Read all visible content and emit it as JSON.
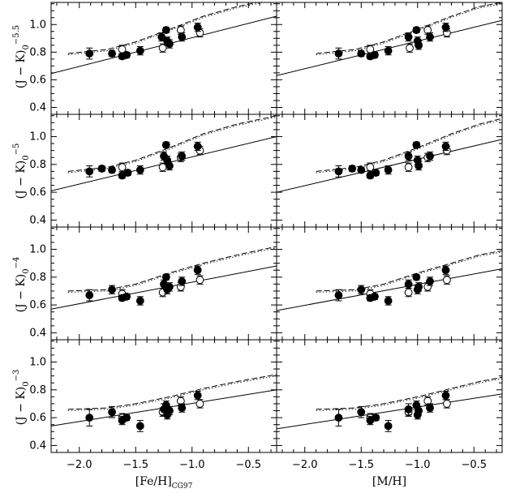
{
  "figure": {
    "xlabels": [
      "[Fe/H]",
      "[M/H]"
    ],
    "xlabel_subscripts": [
      "CG97",
      ""
    ],
    "ylabels": [
      {
        "main": "(J − K)",
        "sub": "0",
        "sup": "−5.5"
      },
      {
        "main": "(J − K)",
        "sub": "0",
        "sup": "−5"
      },
      {
        "main": "(J − K)",
        "sub": "0",
        "sup": "−4"
      },
      {
        "main": "(J − K)",
        "sub": "0",
        "sup": "−3"
      }
    ],
    "xticks": [
      "−2.0",
      "−1.5",
      "−1.0",
      "−0.5"
    ],
    "yticks": [
      "0.4",
      "0.6",
      "0.8",
      "1.0"
    ]
  },
  "chart_data": {
    "type": "scatter",
    "layout": "4 rows x 2 columns",
    "xlim": [
      -2.25,
      -0.25
    ],
    "ylim": [
      0.35,
      1.16
    ],
    "x_axes": [
      "[Fe/H]CG97",
      "[M/H]"
    ],
    "row_ylabels": [
      "(J-K)0 at -5.5",
      "(J-K)0 at -5",
      "(J-K)0 at -4",
      "(J-K)0 at -3"
    ],
    "panels": [
      {
        "row": 0,
        "col": 0,
        "filled": [
          [
            -1.91,
            0.79,
            0.04
          ],
          [
            -1.71,
            0.79,
            0.02
          ],
          [
            -1.62,
            0.77,
            0.02
          ],
          [
            -1.58,
            0.78,
            0.02
          ],
          [
            -1.46,
            0.81,
            0.03
          ],
          [
            -1.27,
            0.91,
            0.03
          ],
          [
            -1.23,
            0.96,
            0.02
          ],
          [
            -1.22,
            0.88,
            0.03
          ],
          [
            -1.2,
            0.86,
            0.03
          ],
          [
            -1.09,
            0.91,
            0.03
          ],
          [
            -0.95,
            0.98,
            0.03
          ]
        ],
        "open": [
          [
            -1.62,
            0.82,
            0.03
          ],
          [
            -1.26,
            0.83,
            0.03
          ],
          [
            -1.1,
            0.96,
            0.03
          ],
          [
            -0.93,
            0.94,
            0.03
          ]
        ],
        "solid_line": [
          [
            -2.25,
            0.645
          ],
          [
            -0.25,
            1.06
          ]
        ],
        "dashed_line": [
          [
            -2.1,
            0.79
          ],
          [
            -1.75,
            0.82
          ],
          [
            -1.5,
            0.875
          ],
          [
            -1.2,
            0.965
          ],
          [
            -0.9,
            1.06
          ],
          [
            -0.6,
            1.13
          ],
          [
            -0.25,
            1.19
          ]
        ]
      },
      {
        "row": 0,
        "col": 1,
        "filled": [
          [
            -1.7,
            0.79,
            0.04
          ],
          [
            -1.5,
            0.79,
            0.02
          ],
          [
            -1.42,
            0.77,
            0.02
          ],
          [
            -1.38,
            0.78,
            0.02
          ],
          [
            -1.26,
            0.81,
            0.03
          ],
          [
            -1.08,
            0.91,
            0.03
          ],
          [
            -1.01,
            0.96,
            0.02
          ],
          [
            -1.0,
            0.88,
            0.03
          ],
          [
            -0.99,
            0.85,
            0.03
          ],
          [
            -0.89,
            0.91,
            0.03
          ],
          [
            -0.75,
            0.98,
            0.03
          ]
        ],
        "open": [
          [
            -1.42,
            0.82,
            0.03
          ],
          [
            -1.07,
            0.83,
            0.03
          ],
          [
            -0.91,
            0.96,
            0.03
          ],
          [
            -0.74,
            0.94,
            0.03
          ]
        ],
        "solid_line": [
          [
            -2.25,
            0.63
          ],
          [
            -0.25,
            1.03
          ]
        ],
        "dashed_line": [
          [
            -1.9,
            0.79
          ],
          [
            -1.55,
            0.82
          ],
          [
            -1.3,
            0.875
          ],
          [
            -1.0,
            0.965
          ],
          [
            -0.7,
            1.06
          ],
          [
            -0.45,
            1.13
          ],
          [
            -0.25,
            1.16
          ]
        ]
      },
      {
        "row": 1,
        "col": 0,
        "filled": [
          [
            -1.91,
            0.75,
            0.04
          ],
          [
            -1.8,
            0.77,
            0.02
          ],
          [
            -1.71,
            0.76,
            0.02
          ],
          [
            -1.62,
            0.72,
            0.02
          ],
          [
            -1.57,
            0.74,
            0.02
          ],
          [
            -1.46,
            0.76,
            0.03
          ],
          [
            -1.25,
            0.86,
            0.03
          ],
          [
            -1.23,
            0.94,
            0.02
          ],
          [
            -1.22,
            0.83,
            0.03
          ],
          [
            -1.2,
            0.79,
            0.03
          ],
          [
            -1.09,
            0.86,
            0.03
          ],
          [
            -0.95,
            0.93,
            0.03
          ]
        ],
        "open": [
          [
            -1.62,
            0.78,
            0.03
          ],
          [
            -1.26,
            0.78,
            0.03
          ],
          [
            -1.1,
            0.85,
            0.03
          ],
          [
            -0.93,
            0.9,
            0.03
          ]
        ],
        "solid_line": [
          [
            -2.25,
            0.61
          ],
          [
            -0.25,
            1.0
          ]
        ],
        "dashed_line": [
          [
            -2.1,
            0.75
          ],
          [
            -1.75,
            0.78
          ],
          [
            -1.5,
            0.83
          ],
          [
            -1.2,
            0.92
          ],
          [
            -0.9,
            1.02
          ],
          [
            -0.6,
            1.09
          ],
          [
            -0.25,
            1.15
          ]
        ]
      },
      {
        "row": 1,
        "col": 1,
        "filled": [
          [
            -1.7,
            0.75,
            0.04
          ],
          [
            -1.58,
            0.77,
            0.02
          ],
          [
            -1.5,
            0.76,
            0.02
          ],
          [
            -1.42,
            0.72,
            0.02
          ],
          [
            -1.37,
            0.74,
            0.02
          ],
          [
            -1.26,
            0.76,
            0.03
          ],
          [
            -1.08,
            0.86,
            0.03
          ],
          [
            -1.01,
            0.94,
            0.02
          ],
          [
            -1.0,
            0.83,
            0.03
          ],
          [
            -0.99,
            0.79,
            0.03
          ],
          [
            -0.89,
            0.86,
            0.03
          ],
          [
            -0.75,
            0.93,
            0.03
          ]
        ],
        "open": [
          [
            -1.42,
            0.78,
            0.03
          ],
          [
            -1.08,
            0.78,
            0.03
          ],
          [
            -0.91,
            0.85,
            0.03
          ],
          [
            -0.74,
            0.9,
            0.03
          ]
        ],
        "solid_line": [
          [
            -2.25,
            0.6
          ],
          [
            -0.25,
            0.98
          ]
        ],
        "dashed_line": [
          [
            -1.9,
            0.75
          ],
          [
            -1.55,
            0.78
          ],
          [
            -1.3,
            0.83
          ],
          [
            -1.0,
            0.92
          ],
          [
            -0.7,
            1.02
          ],
          [
            -0.45,
            1.09
          ],
          [
            -0.25,
            1.13
          ]
        ]
      },
      {
        "row": 2,
        "col": 0,
        "filled": [
          [
            -1.91,
            0.67,
            0.04
          ],
          [
            -1.71,
            0.71,
            0.03
          ],
          [
            -1.62,
            0.65,
            0.02
          ],
          [
            -1.58,
            0.66,
            0.02
          ],
          [
            -1.46,
            0.63,
            0.03
          ],
          [
            -1.25,
            0.75,
            0.03
          ],
          [
            -1.23,
            0.8,
            0.02
          ],
          [
            -1.22,
            0.71,
            0.03
          ],
          [
            -1.2,
            0.73,
            0.03
          ],
          [
            -1.09,
            0.77,
            0.03
          ],
          [
            -0.95,
            0.85,
            0.03
          ]
        ],
        "open": [
          [
            -1.62,
            0.68,
            0.03
          ],
          [
            -1.26,
            0.69,
            0.03
          ],
          [
            -1.1,
            0.73,
            0.03
          ],
          [
            -0.93,
            0.78,
            0.03
          ]
        ],
        "solid_line": [
          [
            -2.25,
            0.57
          ],
          [
            -0.25,
            0.88
          ]
        ],
        "dashed_line": [
          [
            -2.1,
            0.7
          ],
          [
            -1.75,
            0.71
          ],
          [
            -1.5,
            0.75
          ],
          [
            -1.2,
            0.83
          ],
          [
            -0.9,
            0.9
          ],
          [
            -0.6,
            0.96
          ],
          [
            -0.25,
            1.02
          ]
        ]
      },
      {
        "row": 2,
        "col": 1,
        "filled": [
          [
            -1.7,
            0.67,
            0.04
          ],
          [
            -1.5,
            0.71,
            0.03
          ],
          [
            -1.42,
            0.65,
            0.02
          ],
          [
            -1.38,
            0.66,
            0.02
          ],
          [
            -1.26,
            0.63,
            0.03
          ],
          [
            -1.08,
            0.75,
            0.03
          ],
          [
            -1.01,
            0.8,
            0.02
          ],
          [
            -1.0,
            0.71,
            0.03
          ],
          [
            -0.99,
            0.73,
            0.03
          ],
          [
            -0.89,
            0.77,
            0.03
          ],
          [
            -0.75,
            0.85,
            0.03
          ]
        ],
        "open": [
          [
            -1.42,
            0.68,
            0.03
          ],
          [
            -1.08,
            0.69,
            0.03
          ],
          [
            -0.91,
            0.73,
            0.03
          ],
          [
            -0.74,
            0.78,
            0.03
          ]
        ],
        "solid_line": [
          [
            -2.25,
            0.56
          ],
          [
            -0.25,
            0.86
          ]
        ],
        "dashed_line": [
          [
            -1.9,
            0.7
          ],
          [
            -1.55,
            0.71
          ],
          [
            -1.3,
            0.75
          ],
          [
            -1.0,
            0.83
          ],
          [
            -0.7,
            0.9
          ],
          [
            -0.45,
            0.96
          ],
          [
            -0.25,
            0.99
          ]
        ]
      },
      {
        "row": 3,
        "col": 0,
        "filled": [
          [
            -1.91,
            0.6,
            0.06
          ],
          [
            -1.71,
            0.64,
            0.04
          ],
          [
            -1.62,
            0.58,
            0.03
          ],
          [
            -1.58,
            0.6,
            0.02
          ],
          [
            -1.46,
            0.54,
            0.04
          ],
          [
            -1.25,
            0.66,
            0.04
          ],
          [
            -1.23,
            0.69,
            0.03
          ],
          [
            -1.22,
            0.62,
            0.03
          ],
          [
            -1.2,
            0.65,
            0.03
          ],
          [
            -1.09,
            0.67,
            0.03
          ],
          [
            -0.95,
            0.76,
            0.03
          ]
        ],
        "open": [
          [
            -1.62,
            0.6,
            0.03
          ],
          [
            -1.26,
            0.64,
            0.03
          ],
          [
            -1.1,
            0.72,
            0.03
          ],
          [
            -0.93,
            0.7,
            0.03
          ]
        ],
        "solid_line": [
          [
            -2.25,
            0.54
          ],
          [
            -0.25,
            0.8
          ]
        ],
        "dashed_line": [
          [
            -2.1,
            0.66
          ],
          [
            -1.75,
            0.67
          ],
          [
            -1.5,
            0.7
          ],
          [
            -1.2,
            0.75
          ],
          [
            -0.9,
            0.81
          ],
          [
            -0.6,
            0.86
          ],
          [
            -0.25,
            0.91
          ]
        ]
      },
      {
        "row": 3,
        "col": 1,
        "filled": [
          [
            -1.7,
            0.6,
            0.06
          ],
          [
            -1.5,
            0.64,
            0.04
          ],
          [
            -1.42,
            0.58,
            0.03
          ],
          [
            -1.37,
            0.6,
            0.02
          ],
          [
            -1.26,
            0.54,
            0.04
          ],
          [
            -1.08,
            0.66,
            0.04
          ],
          [
            -1.01,
            0.69,
            0.03
          ],
          [
            -1.0,
            0.62,
            0.03
          ],
          [
            -0.99,
            0.65,
            0.03
          ],
          [
            -0.89,
            0.67,
            0.03
          ],
          [
            -0.75,
            0.76,
            0.03
          ]
        ],
        "open": [
          [
            -1.42,
            0.6,
            0.03
          ],
          [
            -1.08,
            0.64,
            0.03
          ],
          [
            -0.91,
            0.72,
            0.03
          ],
          [
            -0.74,
            0.7,
            0.03
          ]
        ],
        "solid_line": [
          [
            -2.25,
            0.52
          ],
          [
            -0.25,
            0.77
          ]
        ],
        "dashed_line": [
          [
            -1.9,
            0.66
          ],
          [
            -1.55,
            0.67
          ],
          [
            -1.3,
            0.7
          ],
          [
            -1.0,
            0.75
          ],
          [
            -0.7,
            0.81
          ],
          [
            -0.45,
            0.86
          ],
          [
            -0.25,
            0.89
          ]
        ]
      }
    ]
  }
}
